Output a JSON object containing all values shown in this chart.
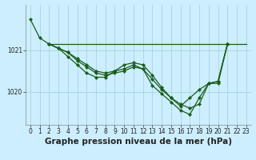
{
  "title": "Graphe pression niveau de la mer (hPa)",
  "background_color": "#cceeff",
  "grid_color": "#aad4d4",
  "line_color": "#1a5c1a",
  "xlim": [
    -0.5,
    23.5
  ],
  "ylim": [
    1019.2,
    1022.1
  ],
  "yticks": [
    1020,
    1021
  ],
  "xticks": [
    0,
    1,
    2,
    3,
    4,
    5,
    6,
    7,
    8,
    9,
    10,
    11,
    12,
    13,
    14,
    15,
    16,
    17,
    18,
    19,
    20,
    21,
    22,
    23
  ],
  "series1_x": [
    0,
    1,
    2,
    3,
    4,
    5,
    6,
    7,
    8,
    9,
    10,
    11,
    12,
    13,
    14,
    15,
    16,
    17,
    18,
    19,
    20,
    21
  ],
  "series1_y": [
    1021.75,
    1021.3,
    1021.15,
    1021.05,
    1020.85,
    1020.65,
    1020.45,
    1020.35,
    1020.35,
    1020.5,
    1020.65,
    1020.7,
    1020.65,
    1020.4,
    1020.1,
    1019.85,
    1019.7,
    1019.6,
    1019.7,
    1020.2,
    1020.2,
    1021.15
  ],
  "series2_x": [
    2,
    23
  ],
  "series2_y": [
    1021.15,
    1021.15
  ],
  "series3_x": [
    2,
    3,
    4,
    5,
    6,
    7,
    8,
    9,
    10,
    11,
    12,
    13,
    14,
    15,
    16,
    17,
    18,
    19,
    20,
    21
  ],
  "series3_y": [
    1021.15,
    1021.05,
    1020.95,
    1020.75,
    1020.6,
    1020.45,
    1020.4,
    1020.45,
    1020.5,
    1020.6,
    1020.55,
    1020.3,
    1020.05,
    1019.85,
    1019.65,
    1019.85,
    1020.05,
    1020.2,
    1020.25,
    1021.15
  ],
  "series4_x": [
    2,
    3,
    4,
    5,
    6,
    7,
    8,
    9,
    10,
    11,
    12,
    13,
    14,
    15,
    16,
    17,
    18,
    19,
    20,
    21
  ],
  "series4_y": [
    1021.15,
    1021.05,
    1020.95,
    1020.8,
    1020.65,
    1020.5,
    1020.45,
    1020.5,
    1020.55,
    1020.65,
    1020.55,
    1020.15,
    1019.95,
    1019.75,
    1019.55,
    1019.45,
    1019.85,
    1020.2,
    1020.25,
    1021.15
  ],
  "marker": "D",
  "markersize": 2.2,
  "linewidth": 0.9,
  "title_fontsize": 7.5,
  "tick_fontsize": 5.5
}
